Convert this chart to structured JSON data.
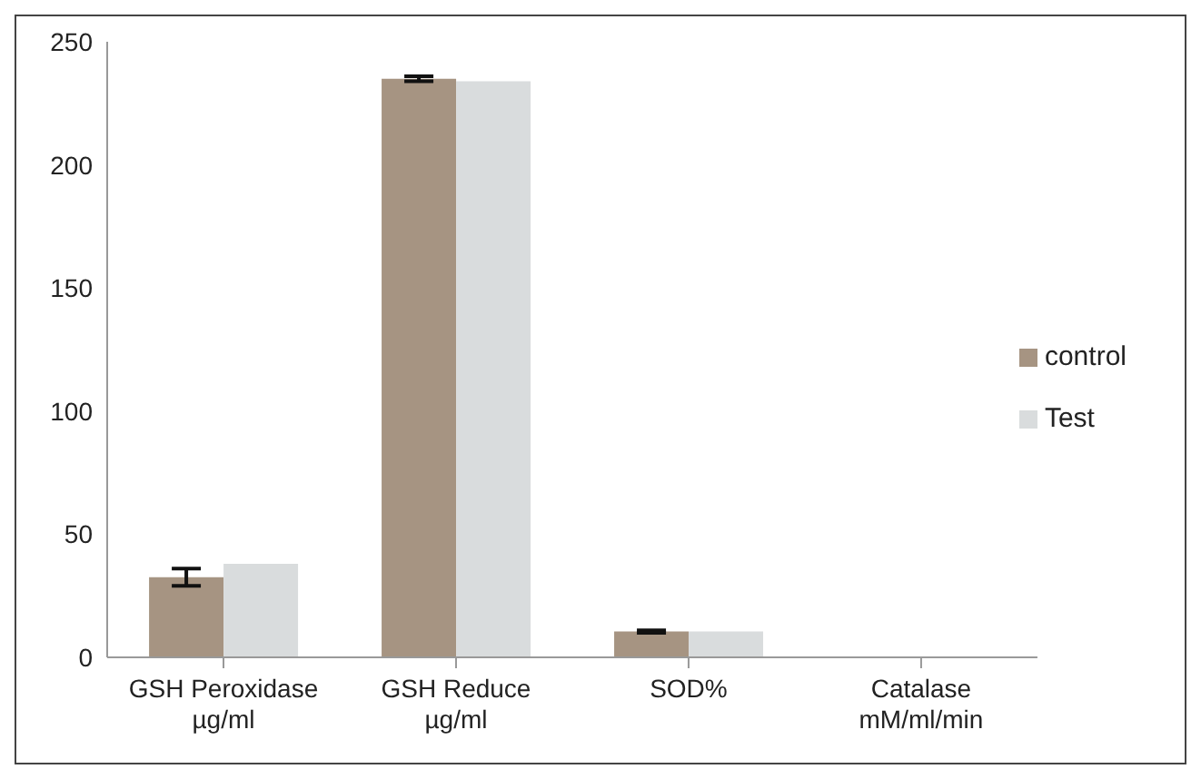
{
  "chart_data": {
    "type": "bar",
    "categories": [
      "GSH Peroxidase\nµg/ml",
      "GSH Reduce\nµg/ml",
      "SOD%",
      "Catalase\nmM/ml/min"
    ],
    "series": [
      {
        "name": "control",
        "color": "#a69482",
        "values": [
          32.5,
          235,
          10.5,
          0.3
        ],
        "errors": [
          3.5,
          1,
          0.5,
          null
        ]
      },
      {
        "name": "Test",
        "color": "#d9dcdd",
        "values": [
          38,
          234,
          10.5,
          0.3
        ]
      }
    ],
    "ylim": [
      0,
      250
    ],
    "yticks": [
      0,
      50,
      100,
      150,
      200,
      250
    ],
    "grid": false,
    "legend": "right"
  }
}
